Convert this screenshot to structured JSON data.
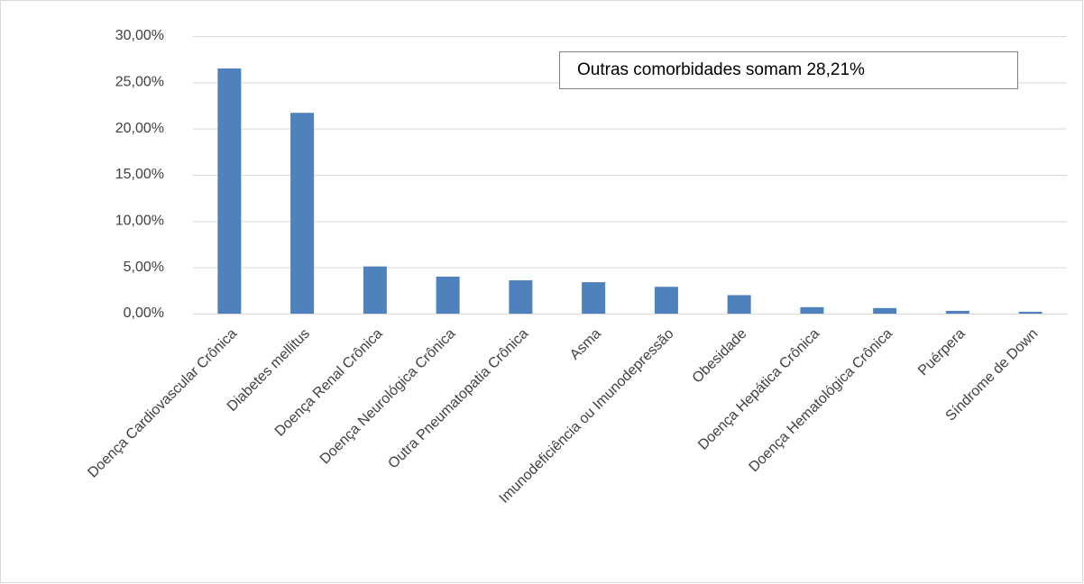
{
  "chart_data": {
    "type": "bar",
    "annotation": "Outras comorbidades somam 28,21%",
    "categories": [
      "Doença Cardiovascular Crônica",
      "Diabetes mellitus",
      "Doença Renal Crônica",
      "Doença Neurológica Crônica",
      "Outra Pneumatopatia Crônica",
      "Asma",
      "Imunodeficiência ou Imunodepressão",
      "Obesidade",
      "Doença Hepática Crônica",
      "Doença Hematológica Crônica",
      "Puérpera",
      "Síndrome de Down"
    ],
    "values": [
      26.5,
      21.7,
      5.1,
      4.0,
      3.6,
      3.4,
      2.9,
      2.0,
      0.7,
      0.6,
      0.3,
      0.2
    ],
    "color": "#4f81bd",
    "ylim": [
      0,
      30
    ],
    "yticks": [
      {
        "value": 0,
        "label": "0,00%"
      },
      {
        "value": 5,
        "label": "5,00%"
      },
      {
        "value": 10,
        "label": "10,00%"
      },
      {
        "value": 15,
        "label": "15,00%"
      },
      {
        "value": 20,
        "label": "20,00%"
      },
      {
        "value": 25,
        "label": "25,00%"
      },
      {
        "value": 30,
        "label": "30,00%"
      }
    ],
    "grid": true
  }
}
